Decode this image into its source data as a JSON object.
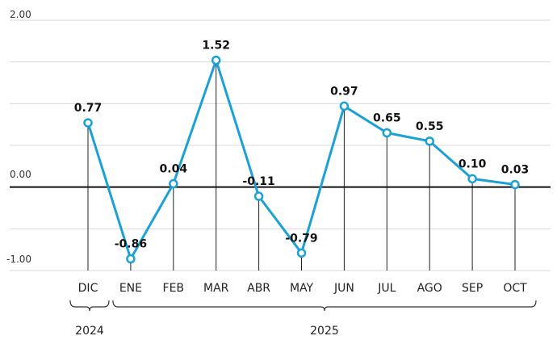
{
  "chart_data": {
    "type": "line",
    "categories": [
      "DIC",
      "ENE",
      "FEB",
      "MAR",
      "ABR",
      "MAY",
      "JUN",
      "JUL",
      "AGO",
      "SEP",
      "OCT"
    ],
    "series": [
      {
        "values": [
          0.77,
          -0.86,
          0.04,
          1.52,
          -0.11,
          -0.79,
          0.97,
          0.65,
          0.55,
          0.1,
          0.03
        ]
      }
    ],
    "data_labels": [
      "0.77",
      "-0.86",
      "0.04",
      "1.52",
      "-0.11",
      "-0.79",
      "0.97",
      "0.65",
      "0.55",
      "0.10",
      "0.03"
    ],
    "ytick_labels": [
      "2.00",
      "0.00",
      "-1.00"
    ],
    "ylim": [
      -1,
      2
    ],
    "grid": true,
    "year_groups": [
      {
        "label": "2024",
        "start": 0,
        "end": 0
      },
      {
        "label": "2025",
        "start": 1,
        "end": 10
      }
    ],
    "colors": {
      "line": "#1ba1d6",
      "zero_line": "#111111",
      "grid": "#d9d9d9",
      "drop_line": "#222222"
    }
  }
}
